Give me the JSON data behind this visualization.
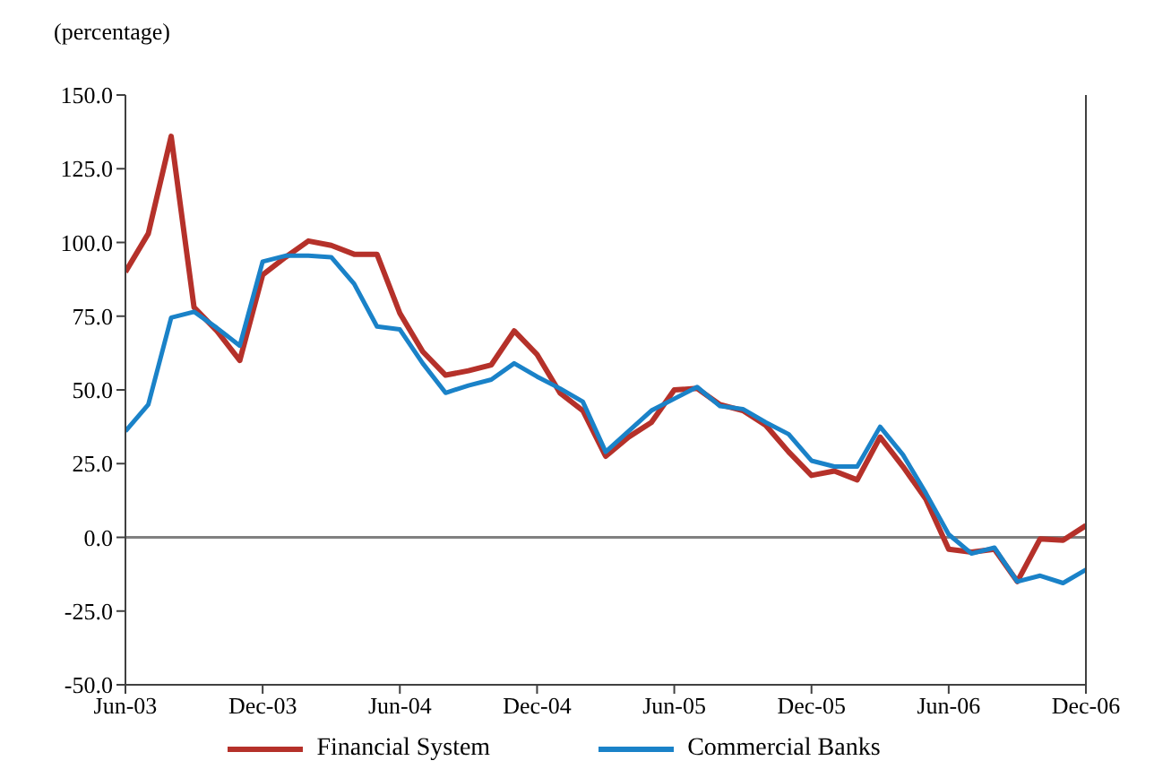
{
  "chart_data": {
    "type": "line",
    "ylabel": "(percentage)",
    "x": [
      "2003-06",
      "2003-07",
      "2003-08",
      "2003-09",
      "2003-10",
      "2003-11",
      "2003-12",
      "2004-01",
      "2004-02",
      "2004-03",
      "2004-04",
      "2004-05",
      "2004-06",
      "2004-07",
      "2004-08",
      "2004-09",
      "2004-10",
      "2004-11",
      "2004-12",
      "2005-01",
      "2005-02",
      "2005-03",
      "2005-04",
      "2005-05",
      "2005-06",
      "2005-07",
      "2005-08",
      "2005-09",
      "2005-10",
      "2005-11",
      "2005-12",
      "2006-01",
      "2006-02",
      "2006-03",
      "2006-04",
      "2006-05",
      "2006-06",
      "2006-07",
      "2006-08",
      "2006-09",
      "2006-10",
      "2006-11",
      "2006-12"
    ],
    "series": [
      {
        "name": "Financial System",
        "color": "#b5312a",
        "values": [
          90,
          103,
          136,
          78,
          70,
          60,
          89,
          95,
          100.5,
          99,
          96,
          96,
          76,
          63,
          55,
          56.5,
          58.5,
          70,
          62,
          49,
          43,
          27.5,
          34,
          39,
          50,
          50.5,
          45,
          43,
          38,
          29,
          21,
          22.5,
          19.5,
          34,
          24,
          13,
          -4,
          -5,
          -4,
          -15,
          -0.5,
          -1,
          4
        ]
      },
      {
        "name": "Commercial Banks",
        "color": "#1a82c8",
        "values": [
          36,
          45,
          74.5,
          76.5,
          71,
          65,
          93.5,
          95.5,
          95.5,
          95,
          86,
          71.5,
          70.5,
          59,
          49,
          51.5,
          53.5,
          59,
          54.5,
          50.5,
          46,
          29,
          36,
          43,
          47,
          51,
          44.5,
          43.5,
          39,
          35,
          26,
          24,
          24,
          37.5,
          28,
          15,
          1,
          -5.5,
          -3.5,
          -15,
          -13,
          -15.5,
          -11
        ]
      }
    ],
    "xlim": [
      "2003-06",
      "2006-12"
    ],
    "xticks": [
      {
        "value": "2003-06",
        "label": "Jun-03"
      },
      {
        "value": "2003-12",
        "label": "Dec-03"
      },
      {
        "value": "2004-06",
        "label": "Jun-04"
      },
      {
        "value": "2004-12",
        "label": "Dec-04"
      },
      {
        "value": "2005-06",
        "label": "Jun-05"
      },
      {
        "value": "2005-12",
        "label": "Dec-05"
      },
      {
        "value": "2006-06",
        "label": "Jun-06"
      },
      {
        "value": "2006-12",
        "label": "Dec-06"
      }
    ],
    "ylim": [
      -50,
      150
    ],
    "yticks": [
      {
        "value": -50,
        "label": "-50.0"
      },
      {
        "value": -25,
        "label": "-25.0"
      },
      {
        "value": 0,
        "label": "0.0"
      },
      {
        "value": 25,
        "label": "25.0"
      },
      {
        "value": 50,
        "label": "50.0"
      },
      {
        "value": 75,
        "label": "75.0"
      },
      {
        "value": 100,
        "label": "100.0"
      },
      {
        "value": 125,
        "label": "125.0"
      },
      {
        "value": 150,
        "label": "150.0"
      }
    ],
    "ref_lines": [
      {
        "axis": "y",
        "value": 0,
        "color": "#808080"
      }
    ],
    "grid": false,
    "legend": "bottom",
    "marker": "none",
    "line_style": "solid"
  }
}
